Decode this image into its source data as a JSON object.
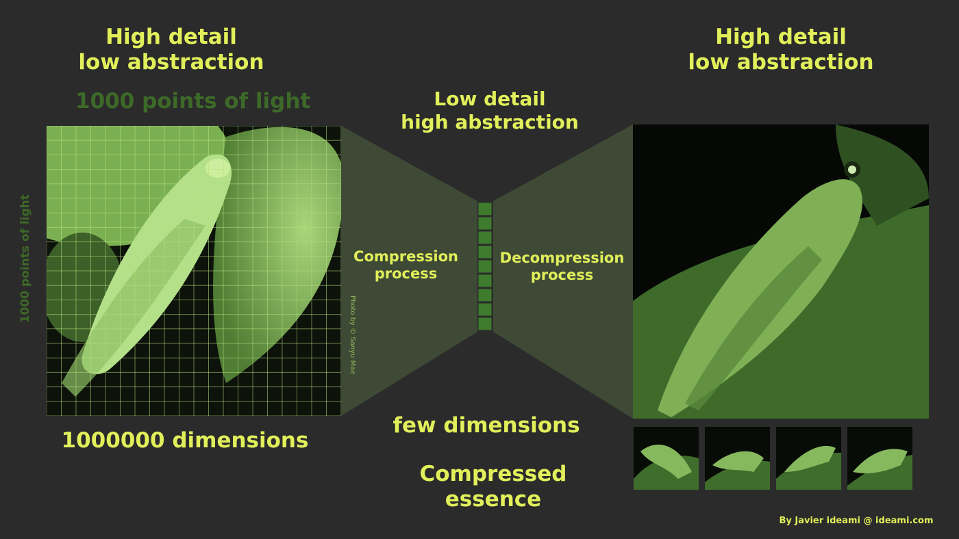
{
  "titles": {
    "left": "High detail\nlow abstraction",
    "right": "High detail\nlow abstraction",
    "middle": "Low detail\nhigh abstraction"
  },
  "labels": {
    "points_horizontal": "1000 points of light",
    "points_vertical": "1000 points of light",
    "compression": "Compression\nprocess",
    "decompression": "Decompression\nprocess",
    "dims_input": "1000000 dimensions",
    "dims_latent": "few dimensions",
    "essence": "Compressed\nessence",
    "photo_credit": "Photo by © Sanyu Mae",
    "author_credit": "By Javier ideami @ ideami.com"
  },
  "colors": {
    "background": "#2b2b2b",
    "accent": "#e1f05a",
    "dim_label": "#3d6a28",
    "funnel": "#3f4a36",
    "latent_cell": "#3e7b2c",
    "image_green": "#9bcf6c"
  },
  "latent": {
    "cells": 9
  },
  "icons": {
    "input_image": "cicada-image",
    "output_image": "cicada-image",
    "thumbnails": [
      "cicada-image",
      "cicada-image",
      "cicada-image",
      "cicada-image"
    ]
  }
}
